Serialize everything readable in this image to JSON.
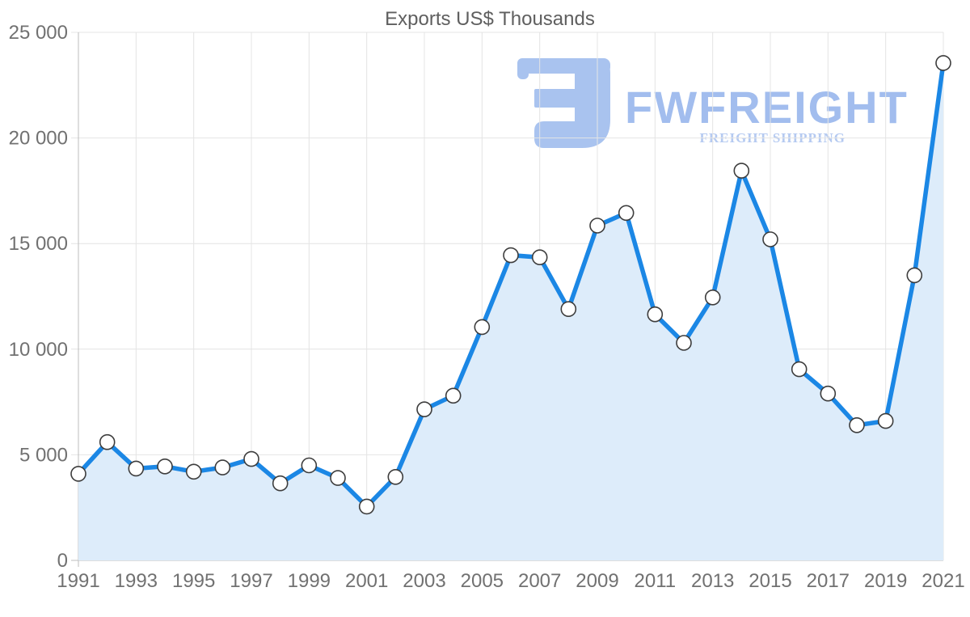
{
  "title": "Exports US$ Thousands",
  "watermark": {
    "brand": "FWFREIGHT",
    "tagline": "FREIGHT SHIPPING",
    "brand_color": "#a2bdee",
    "tagline_color": "#b5caf1",
    "logo_color": "#a9c3ef"
  },
  "chart_data": {
    "type": "area",
    "title": "Exports US$ Thousands",
    "xlabel": "",
    "ylabel": "",
    "x": [
      1991,
      1992,
      1993,
      1994,
      1995,
      1996,
      1997,
      1998,
      1999,
      2000,
      2001,
      2002,
      2003,
      2004,
      2005,
      2006,
      2007,
      2008,
      2009,
      2010,
      2011,
      2012,
      2013,
      2014,
      2015,
      2016,
      2017,
      2018,
      2019,
      2020,
      2021
    ],
    "values": [
      4100,
      5600,
      4350,
      4450,
      4200,
      4400,
      4800,
      3650,
      4500,
      3900,
      2550,
      3950,
      7150,
      7800,
      11050,
      14450,
      14350,
      11900,
      15850,
      16450,
      11650,
      10300,
      12450,
      18450,
      15200,
      9050,
      7900,
      6400,
      6600,
      13500,
      23550
    ],
    "xlim": [
      1991,
      2021
    ],
    "ylim": [
      0,
      25000
    ],
    "y_ticks": [
      0,
      5000,
      10000,
      15000,
      20000,
      25000
    ],
    "y_tick_labels": [
      "0",
      "5 000",
      "10 000",
      "15 000",
      "20 000",
      "25 000"
    ],
    "x_ticks": [
      1991,
      1993,
      1995,
      1997,
      1999,
      2001,
      2003,
      2005,
      2007,
      2009,
      2011,
      2013,
      2015,
      2017,
      2019,
      2021
    ],
    "x_tick_labels": [
      "1991",
      "1993",
      "1995",
      "1997",
      "1999",
      "2001",
      "2003",
      "2005",
      "2007",
      "2009",
      "2011",
      "2013",
      "2015",
      "2017",
      "2019",
      "2021"
    ],
    "grid": true,
    "legend": false,
    "marker_shape": "circle",
    "colors": {
      "line": "#1b87e5",
      "fill": "#ddecfa",
      "marker_fill": "#ffffff",
      "marker_stroke": "#3d3d3d",
      "grid": "#e4e4e4",
      "axis": "#bdbdbd",
      "tick_text": "#717171",
      "title_text": "#5f5f5f"
    }
  }
}
